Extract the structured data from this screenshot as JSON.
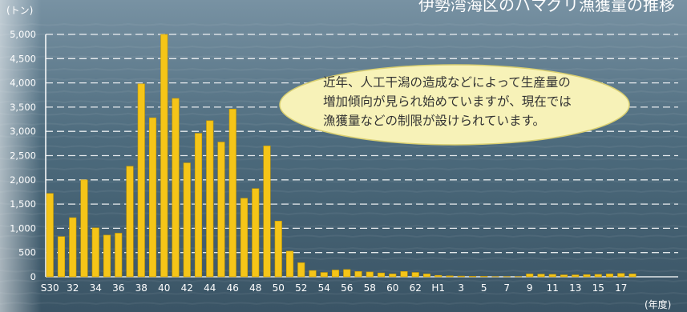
{
  "chart_data": {
    "type": "bar",
    "title": "伊勢湾海区のハマグリ漁獲量の推移",
    "ylabel": "(トン)",
    "xlabel": "(年度)",
    "ylim": [
      0,
      5000
    ],
    "yticks": [
      0,
      500,
      1000,
      1500,
      2000,
      2500,
      3000,
      3500,
      4000,
      4500,
      5000
    ],
    "ytick_labels": [
      "0",
      "500",
      "1,000",
      "1,500",
      "2,000",
      "2,500",
      "3,000",
      "3,500",
      "4,000",
      "4,500",
      "5,000"
    ],
    "grid": true,
    "categories": [
      "S30",
      "31",
      "32",
      "33",
      "34",
      "35",
      "36",
      "37",
      "38",
      "39",
      "40",
      "41",
      "42",
      "43",
      "44",
      "45",
      "46",
      "47",
      "48",
      "49",
      "50",
      "51",
      "52",
      "53",
      "54",
      "55",
      "56",
      "57",
      "58",
      "59",
      "60",
      "61",
      "62",
      "63",
      "H1",
      "2",
      "3",
      "4",
      "5",
      "6",
      "7",
      "8",
      "9",
      "10",
      "11",
      "12",
      "13",
      "14",
      "15",
      "16",
      "17",
      "18"
    ],
    "xtick_labels": [
      "S30",
      "32",
      "34",
      "36",
      "38",
      "40",
      "42",
      "44",
      "46",
      "48",
      "50",
      "52",
      "54",
      "56",
      "58",
      "60",
      "62",
      "H1",
      "3",
      "5",
      "7",
      "9",
      "11",
      "13",
      "15",
      "17"
    ],
    "values": [
      1720,
      830,
      1220,
      2000,
      1010,
      860,
      900,
      2280,
      3980,
      3280,
      5000,
      3680,
      2350,
      2960,
      3220,
      2780,
      3460,
      1620,
      1820,
      2700,
      1150,
      530,
      290,
      130,
      90,
      140,
      150,
      110,
      100,
      80,
      60,
      110,
      90,
      60,
      30,
      20,
      15,
      10,
      10,
      5,
      5,
      5,
      60,
      55,
      50,
      40,
      40,
      45,
      50,
      60,
      70,
      60
    ]
  },
  "annotation": {
    "lines": [
      "近年、人工干潟の造成などによって生産量の",
      "増加傾向が見られ始めていますが、現在では",
      "漁獲量などの制限が設けられています。"
    ]
  },
  "colors": {
    "bar": "#f5c518",
    "bar_edge": "#c99b00",
    "grid": "#ffffff",
    "axis": "#ffffff",
    "title": "#ffffff",
    "callout_fill": "#f7f2b8",
    "callout_edge": "#d9cf70",
    "callout_text": "#333333"
  }
}
